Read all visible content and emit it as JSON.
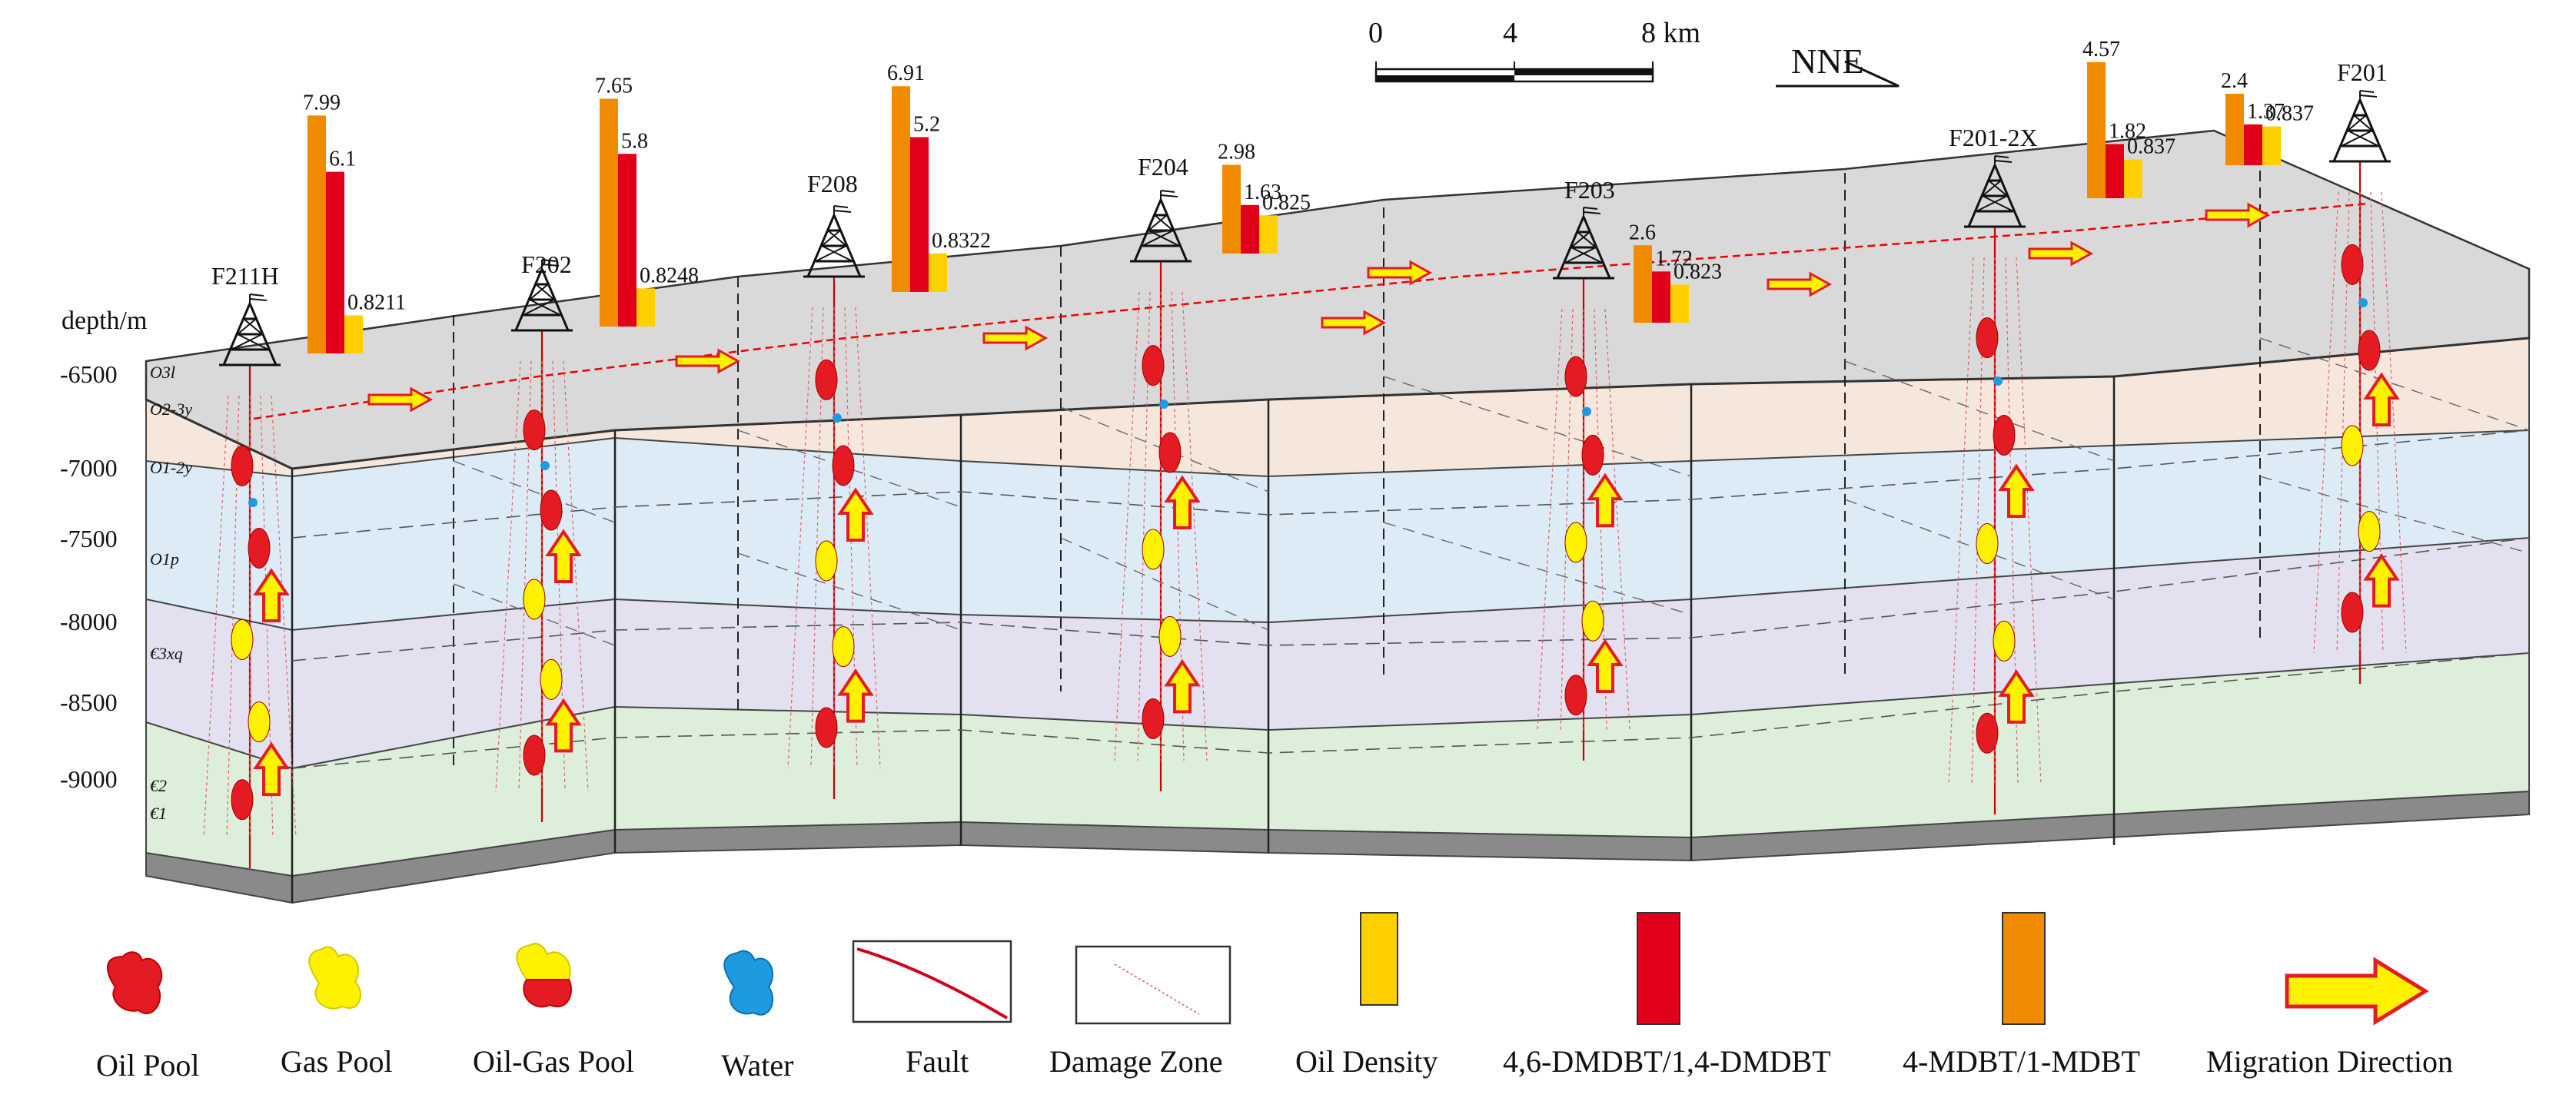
{
  "scale_bar": {
    "label_0": "0",
    "label_4": "4",
    "label_8": "8 km"
  },
  "direction": "NNE",
  "depth_axis": {
    "title": "depth/m",
    "ticks": [
      "-6500",
      "-7000",
      "-7500",
      "-8000",
      "-8500",
      "-9000"
    ]
  },
  "strata": [
    "O3l",
    "O2-3y",
    "O1-2y",
    "O1p",
    "€3xq",
    "€2",
    "€1"
  ],
  "wells": [
    {
      "name": "F211H",
      "bars": [
        {
          "label": "7.99",
          "value": 7.99
        },
        {
          "label": "6.1",
          "value": 6.1
        },
        {
          "label": "0.8211",
          "value": 0.8211
        }
      ]
    },
    {
      "name": "F202",
      "bars": [
        {
          "label": "7.65",
          "value": 7.65
        },
        {
          "label": "5.8",
          "value": 5.8
        },
        {
          "label": "0.8248",
          "value": 0.8248
        }
      ]
    },
    {
      "name": "F208",
      "bars": [
        {
          "label": "6.91",
          "value": 6.91
        },
        {
          "label": "5.2",
          "value": 5.2
        },
        {
          "label": "0.8322",
          "value": 0.8322
        }
      ]
    },
    {
      "name": "F204",
      "bars": [
        {
          "label": "2.98",
          "value": 2.98
        },
        {
          "label": "1.63",
          "value": 1.63
        },
        {
          "label": "0.825",
          "value": 0.825
        }
      ]
    },
    {
      "name": "F203",
      "bars": [
        {
          "label": "2.6",
          "value": 2.6
        },
        {
          "label": "1.72",
          "value": 1.72
        },
        {
          "label": "0.823",
          "value": 0.823
        }
      ]
    },
    {
      "name": "F201-2X",
      "bars": [
        {
          "label": "4.57",
          "value": 4.57
        },
        {
          "label": "1.82",
          "value": 1.82
        },
        {
          "label": "0.837",
          "value": 0.837
        }
      ]
    },
    {
      "name": "F201",
      "bars": [
        {
          "label": "2.4",
          "value": 2.4
        },
        {
          "label": "1.37",
          "value": 1.37
        },
        {
          "label": "0.837",
          "value": 0.837
        }
      ]
    }
  ],
  "legend": {
    "oil_pool": "Oil Pool",
    "gas_pool": "Gas Pool",
    "oil_gas_pool": "Oil-Gas Pool",
    "water": "Water",
    "fault": "Fault",
    "damage_zone": "Damage Zone",
    "oil_density": "Oil Density",
    "dmdbt_46_14": "4,6-DMDBT/1,4-DMDBT",
    "mdbt_4_1": "4-MDBT/1-MDBT",
    "migration": "Migration Direction"
  },
  "colors": {
    "orange_bar": "#F08A00",
    "red_bar": "#E0001A",
    "yellow_bar": "#FFD000",
    "oil": "#E41B23",
    "gas": "#FFF200",
    "water": "#1E9BE0",
    "top_surface": "#D9D9D9",
    "layer_1": "#F6E7DC",
    "layer_2": "#DCEBF6",
    "layer_3": "#E3E1EF",
    "layer_4": "#DDEEDB",
    "base": "#8A8A8A"
  }
}
